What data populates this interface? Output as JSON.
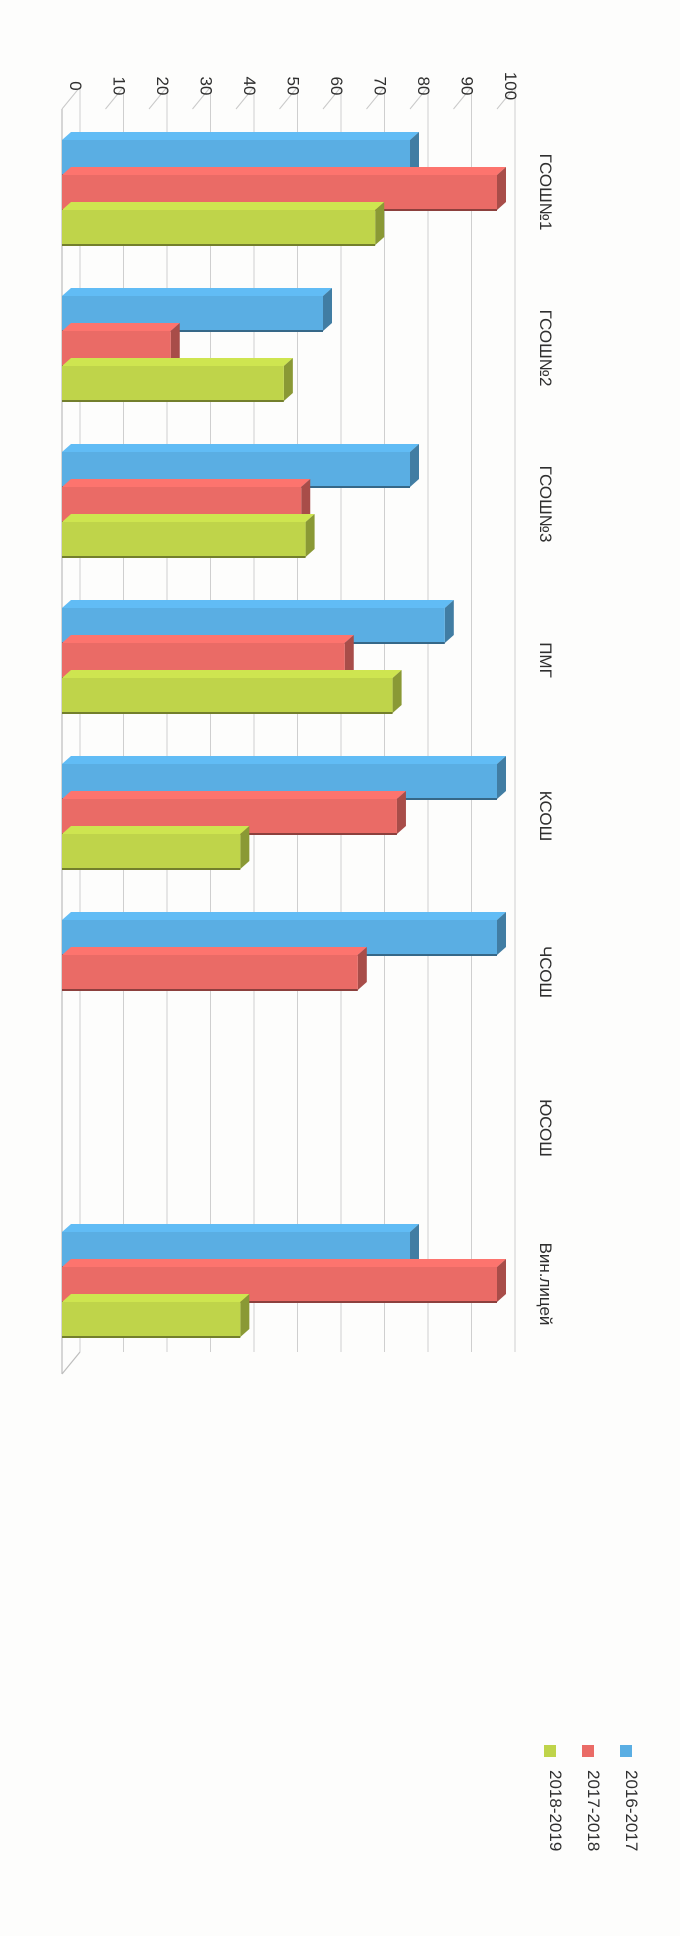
{
  "chart_data": {
    "type": "bar",
    "orientation": "horizontal-3d",
    "categories": [
      "ГСОШ№1",
      "ГСОШ№2",
      "ГСОШ№3",
      "ПМГ",
      "КСОШ",
      "ЧСОШ",
      "ЮСОШ",
      "Вин.лицей"
    ],
    "series": [
      {
        "name": "2016-2017",
        "color": "#5aaee3",
        "values": [
          80,
          60,
          80,
          88,
          100,
          100,
          0,
          80
        ]
      },
      {
        "name": "2017-2018",
        "color": "#ea6b66",
        "values": [
          100,
          25,
          55,
          65,
          77,
          68,
          0,
          100
        ]
      },
      {
        "name": "2018-2019",
        "color": "#bfd44a",
        "values": [
          72,
          51,
          56,
          76,
          41,
          0,
          0,
          41
        ]
      }
    ],
    "axis": {
      "min": 0,
      "max": 100,
      "step": 10,
      "ticks": [
        "0",
        "10",
        "20",
        "30",
        "40",
        "50",
        "60",
        "70",
        "80",
        "90",
        "100"
      ]
    },
    "grid": true,
    "legend_position": "right"
  }
}
